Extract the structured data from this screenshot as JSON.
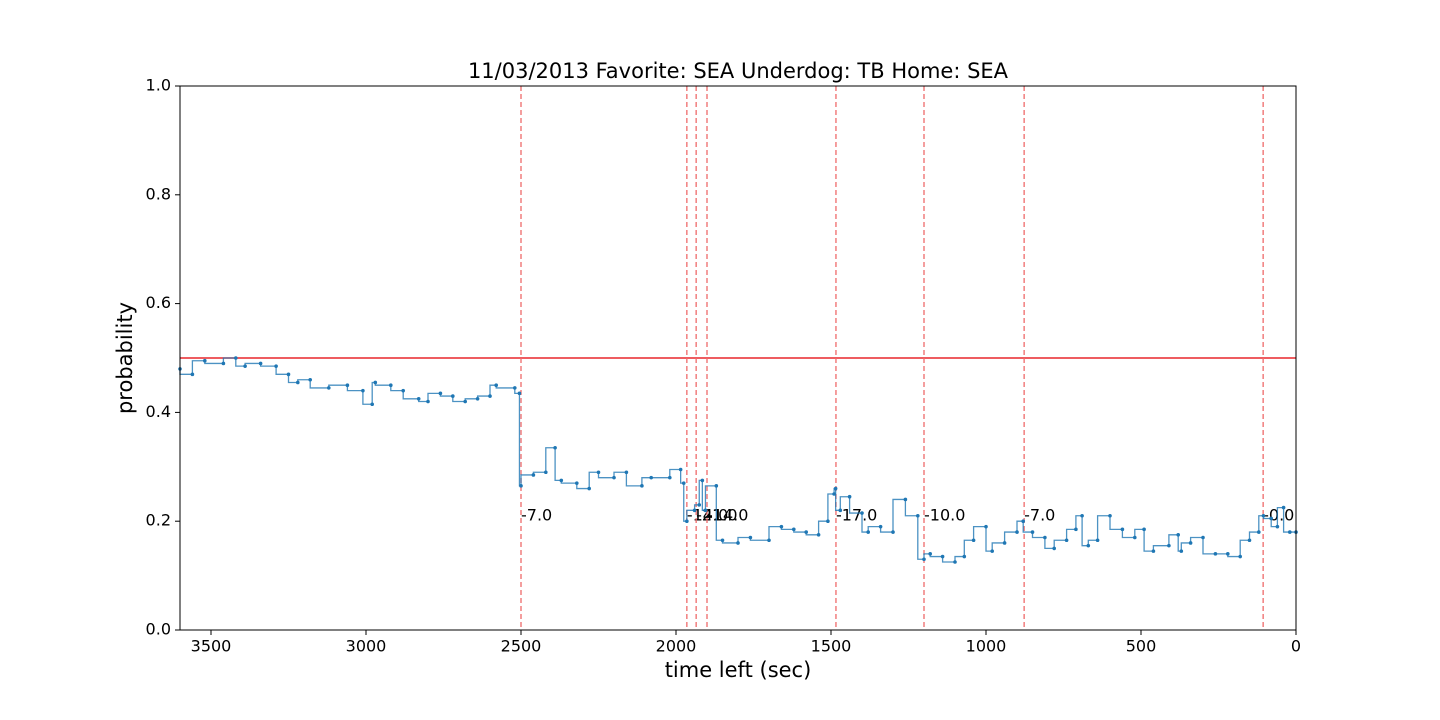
{
  "chart_data": {
    "type": "line",
    "title": "11/03/2013 Favorite: SEA Underdog: TB Home: SEA",
    "xlabel": "time left (sec)",
    "ylabel": "probability",
    "xlim": [
      3600,
      0
    ],
    "ylim": [
      0,
      1
    ],
    "xticks": [
      3500,
      3000,
      2500,
      2000,
      1500,
      1000,
      500,
      0
    ],
    "yticks": [
      {
        "value": 0,
        "label": "0.0"
      },
      0.2,
      0.4,
      0.6,
      0.8,
      {
        "value": 1,
        "label": "1.0"
      }
    ],
    "series": [
      {
        "color": "#1f77b4",
        "x": [
          3600,
          3560,
          3520,
          3460,
          3420,
          3390,
          3340,
          3290,
          3250,
          3220,
          3180,
          3120,
          3060,
          3010,
          2980,
          2970,
          2920,
          2880,
          2830,
          2800,
          2760,
          2720,
          2680,
          2640,
          2600,
          2580,
          2520,
          2505,
          2500,
          2460,
          2420,
          2390,
          2370,
          2320,
          2280,
          2250,
          2200,
          2160,
          2110,
          2080,
          2020,
          1985,
          1975,
          1965,
          1940,
          1925,
          1915,
          1905,
          1870,
          1850,
          1800,
          1760,
          1700,
          1660,
          1620,
          1580,
          1540,
          1510,
          1490,
          1485,
          1470,
          1440,
          1400,
          1380,
          1340,
          1300,
          1260,
          1220,
          1200,
          1180,
          1140,
          1100,
          1070,
          1040,
          1000,
          980,
          940,
          900,
          880,
          850,
          810,
          780,
          740,
          710,
          690,
          670,
          640,
          600,
          560,
          520,
          490,
          460,
          410,
          380,
          370,
          340,
          300,
          260,
          220,
          180,
          150,
          120,
          105,
          80,
          60,
          40,
          20,
          0
        ],
        "values": [
          0.48,
          0.47,
          0.495,
          0.49,
          0.5,
          0.485,
          0.49,
          0.485,
          0.47,
          0.455,
          0.46,
          0.445,
          0.45,
          0.44,
          0.415,
          0.455,
          0.45,
          0.44,
          0.425,
          0.42,
          0.435,
          0.43,
          0.42,
          0.425,
          0.43,
          0.45,
          0.445,
          0.435,
          0.265,
          0.285,
          0.29,
          0.335,
          0.275,
          0.27,
          0.26,
          0.29,
          0.28,
          0.29,
          0.265,
          0.28,
          0.28,
          0.295,
          0.27,
          0.2,
          0.22,
          0.23,
          0.275,
          0.22,
          0.265,
          0.165,
          0.16,
          0.17,
          0.165,
          0.19,
          0.185,
          0.18,
          0.175,
          0.2,
          0.25,
          0.26,
          0.22,
          0.245,
          0.215,
          0.18,
          0.19,
          0.18,
          0.24,
          0.21,
          0.13,
          0.14,
          0.135,
          0.125,
          0.135,
          0.165,
          0.19,
          0.145,
          0.16,
          0.18,
          0.2,
          0.18,
          0.17,
          0.15,
          0.165,
          0.185,
          0.21,
          0.155,
          0.165,
          0.21,
          0.185,
          0.17,
          0.185,
          0.145,
          0.155,
          0.175,
          0.145,
          0.16,
          0.17,
          0.14,
          0.14,
          0.135,
          0.165,
          0.18,
          0.21,
          0.205,
          0.19,
          0.225,
          0.18,
          0.18
        ]
      }
    ],
    "hline": 0.5,
    "hline_color": "#e8262b",
    "vline_color": "#ef6a6a",
    "vlines": [
      {
        "x": 2500,
        "label": "-7.0"
      },
      {
        "x": 1965,
        "label": "-14.0"
      },
      {
        "x": 1935,
        "label": "-21.0"
      },
      {
        "x": 1900,
        "label": "-14.0"
      },
      {
        "x": 1484,
        "label": "-17.0"
      },
      {
        "x": 1200,
        "label": "-10.0"
      },
      {
        "x": 877,
        "label": "-7.0"
      },
      {
        "x": 106,
        "label": "-0.0"
      }
    ]
  }
}
